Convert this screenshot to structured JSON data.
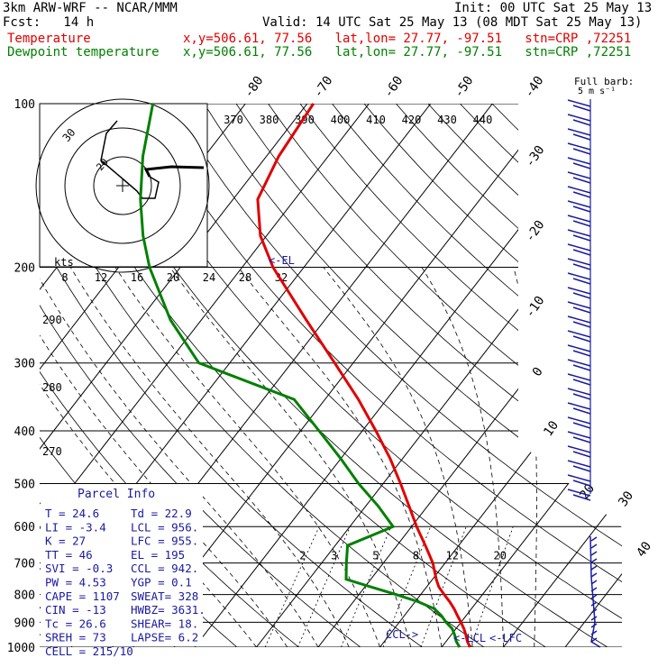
{
  "header": {
    "model_line": "3km ARW-WRF -- NCAR/MMM",
    "init_line": "Init: 00 UTC Sat 25 May 13",
    "fcst_line": "Fcst:   14 h",
    "valid_line": "Valid: 14 UTC Sat 25 May 13 (08 MDT Sat 25 May 13)",
    "temp_label": "Temperature",
    "dew_label": "Dewpoint temperature",
    "loc_line": "x,y=506.61, 77.56   lat,lon= 27.77, -97.51   stn=CRP ,72251"
  },
  "colors": {
    "temperature": "#e00000",
    "dewpoint": "#008000",
    "wind": "#1a1aa0",
    "info": "#1a1aa0"
  },
  "chart_data": {
    "type": "line",
    "pressure_levels": [
      100,
      200,
      300,
      400,
      500,
      600,
      700,
      800,
      900,
      1000
    ],
    "isotherm_labels": [
      -80,
      -70,
      -60,
      -50,
      -40,
      -30,
      -20,
      -10,
      0,
      10,
      20,
      30,
      40
    ],
    "theta_labels": [
      370,
      380,
      390,
      400,
      410,
      420,
      430,
      440
    ],
    "mixing_ratio_labels": [
      2,
      3,
      5,
      8,
      12,
      20
    ],
    "hodograph_kt_labels": [
      8,
      12,
      16,
      20,
      24,
      28,
      32
    ],
    "hodograph_ring_labels": [
      "30",
      "20"
    ],
    "hodograph_unit": "kts",
    "left_side_labels": [
      "290",
      "280",
      "270"
    ],
    "series": [
      {
        "name": "Temperature",
        "pressure": [
          1000,
          975,
          950,
          925,
          900,
          875,
          850,
          825,
          800,
          775,
          750,
          700,
          650,
          600,
          550,
          500,
          450,
          400,
          350,
          300,
          250,
          200,
          175,
          150,
          125,
          100
        ],
        "values": [
          24.6,
          23.4,
          22.4,
          21.3,
          20.0,
          18.6,
          17.2,
          15.6,
          13.8,
          12.0,
          10.6,
          8.0,
          4.6,
          0.8,
          -3.0,
          -7.2,
          -12.0,
          -17.8,
          -24.6,
          -33.0,
          -43.0,
          -55.0,
          -61.0,
          -66.0,
          -68.0,
          -69.0
        ]
      },
      {
        "name": "Dewpoint temperature",
        "pressure": [
          1000,
          975,
          950,
          925,
          900,
          875,
          850,
          825,
          800,
          775,
          750,
          700,
          650,
          600,
          550,
          500,
          450,
          400,
          350,
          300,
          250,
          200,
          175,
          150,
          125,
          100
        ],
        "values": [
          22.9,
          21.6,
          20.6,
          19.4,
          17.6,
          16.0,
          14.0,
          10.5,
          6.0,
          1.0,
          -4.0,
          -6.0,
          -8.0,
          -3.0,
          -8.0,
          -14.0,
          -20.0,
          -27.0,
          -35.0,
          -55.0,
          -65.0,
          -75.0,
          -80.0,
          -85.0,
          -90.0,
          -95.0
        ]
      }
    ],
    "annotations": [
      "<-EL",
      "CCL->",
      "<-LCL",
      "<-LFC"
    ],
    "wind_barb_title": "Full barb:",
    "wind_barb_unit": "5 m s⁻¹"
  },
  "parcel_info": {
    "title": "Parcel Info",
    "rows": [
      [
        "T   =   24.6",
        "Td  =  22.9"
      ],
      [
        "LI  =   -3.4",
        "LCL =  956."
      ],
      [
        "K   =     27",
        "LFC =  955."
      ],
      [
        "TT  =     46",
        "EL  =   195"
      ],
      [
        "SVI =   -0.3",
        "CCL =  942."
      ],
      [
        "PW  =   4.53",
        "YGP =   0.1"
      ],
      [
        "CAPE =  1107",
        "SWEAT=  328"
      ],
      [
        "CIN  =   -13",
        "HWBZ= 3631."
      ],
      [
        "Tc  =   26.6",
        "SHEAR=  18."
      ],
      [
        "SREH =    73",
        "LAPSE=  6.2"
      ],
      [
        "CELL = 215/10",
        ""
      ]
    ]
  }
}
